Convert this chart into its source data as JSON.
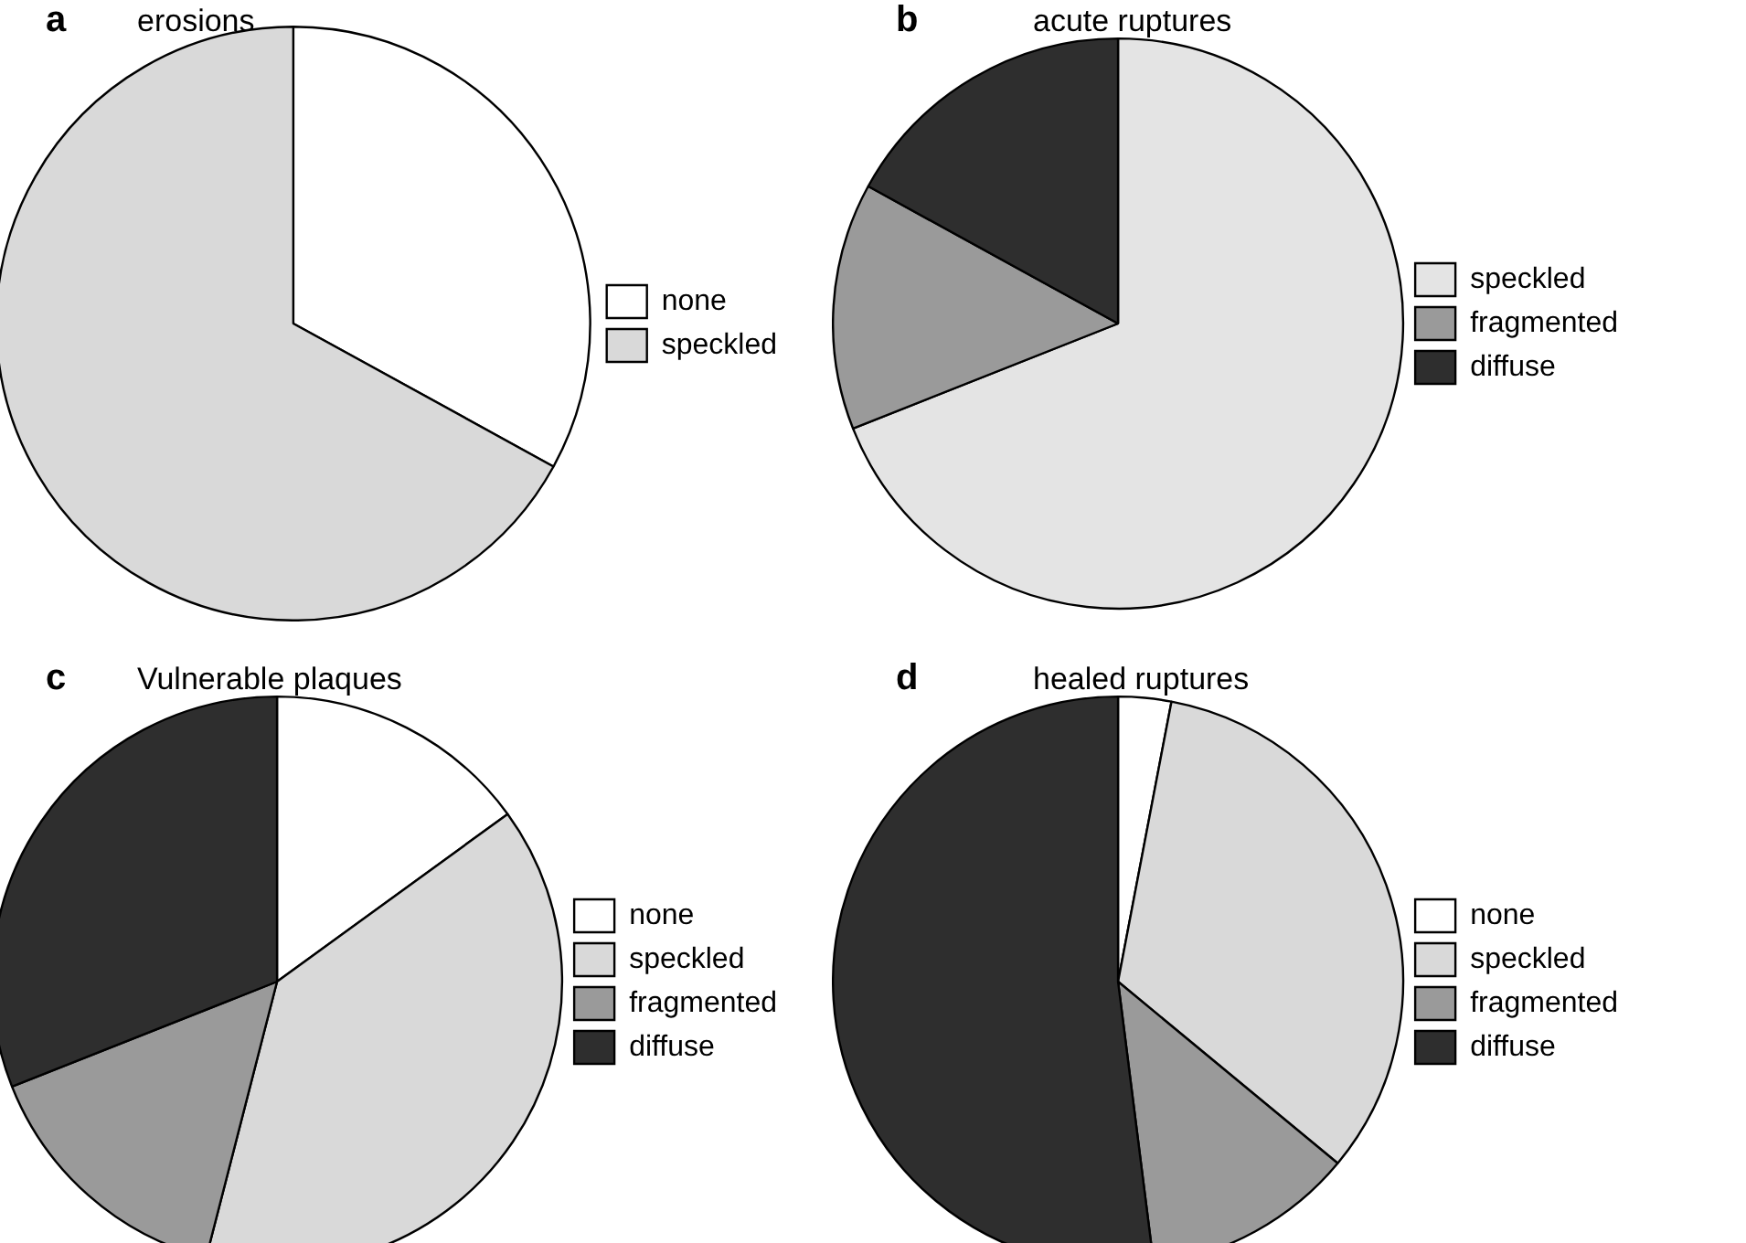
{
  "chart_data": [
    {
      "type": "pie",
      "title": "erosions",
      "annotations": [
        "a"
      ],
      "categories": [
        "none",
        "speckled"
      ],
      "values": [
        33,
        67
      ],
      "colors": [
        "#ffffff",
        "#d9d9d9"
      ],
      "legend": "right"
    },
    {
      "type": "pie",
      "title": "acute ruptures",
      "annotations": [
        "b"
      ],
      "categories": [
        "speckled",
        "fragmented",
        "diffuse"
      ],
      "values": [
        69,
        14,
        17
      ],
      "colors": [
        "#e4e4e4",
        "#9a9a9a",
        "#2e2e2e"
      ],
      "legend": "right"
    },
    {
      "type": "pie",
      "title": "Vulnerable plaques",
      "annotations": [
        "c"
      ],
      "categories": [
        "none",
        "speckled",
        "fragmented",
        "diffuse"
      ],
      "values": [
        15,
        39,
        15,
        31
      ],
      "colors": [
        "#ffffff",
        "#d9d9d9",
        "#9a9a9a",
        "#2e2e2e"
      ],
      "legend": "right"
    },
    {
      "type": "pie",
      "title": "healed ruptures",
      "annotations": [
        "d"
      ],
      "categories": [
        "none",
        "speckled",
        "fragmented",
        "diffuse"
      ],
      "values": [
        3,
        33,
        12,
        52
      ],
      "colors": [
        "#ffffff",
        "#d9d9d9",
        "#9a9a9a",
        "#2e2e2e"
      ],
      "legend": "right"
    }
  ]
}
